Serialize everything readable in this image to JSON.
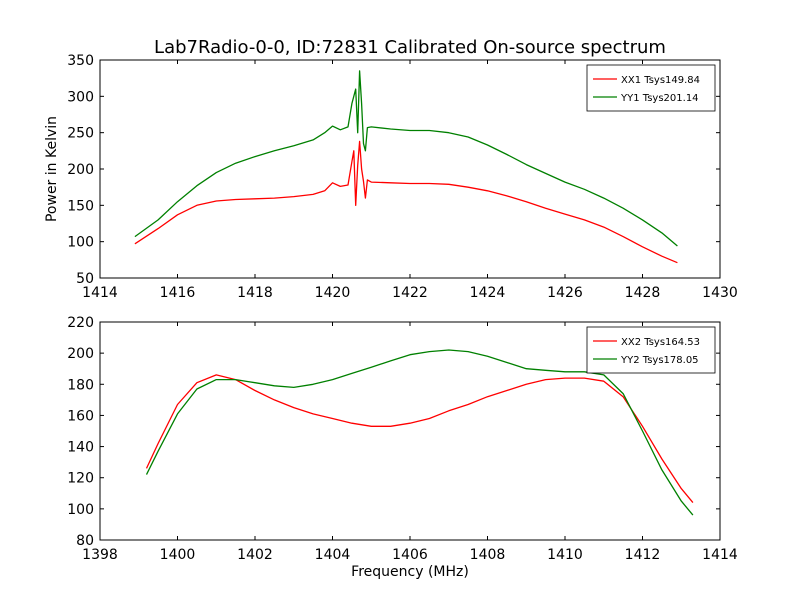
{
  "figure": {
    "title": "Lab7Radio-0-0, ID:72831 Calibrated On-source spectrum"
  },
  "chart_data": [
    {
      "type": "line",
      "title": "Lab7Radio-0-0, ID:72831 Calibrated On-source spectrum",
      "xlabel": "",
      "ylabel": "Power in Kelvin",
      "xlim": [
        1414,
        1430
      ],
      "ylim": [
        50,
        350
      ],
      "xticks": [
        1414,
        1416,
        1418,
        1420,
        1422,
        1424,
        1426,
        1428,
        1430
      ],
      "yticks": [
        50,
        100,
        150,
        200,
        250,
        300,
        350
      ],
      "legend": "top-right",
      "grid": false,
      "series": [
        {
          "name": "XX1 Tsys149.84",
          "color": "#ff0000",
          "x": [
            1414.9,
            1415.5,
            1416.0,
            1416.5,
            1417.0,
            1417.5,
            1418.0,
            1418.5,
            1419.0,
            1419.5,
            1419.8,
            1420.0,
            1420.2,
            1420.4,
            1420.5,
            1420.55,
            1420.6,
            1420.65,
            1420.7,
            1420.75,
            1420.8,
            1420.85,
            1420.9,
            1421.0,
            1421.5,
            1422.0,
            1422.5,
            1423.0,
            1423.5,
            1424.0,
            1424.5,
            1425.0,
            1425.5,
            1426.0,
            1426.5,
            1427.0,
            1427.5,
            1428.0,
            1428.5,
            1428.9
          ],
          "y": [
            97,
            118,
            137,
            150,
            156,
            158,
            159,
            160,
            162,
            165,
            170,
            181,
            176,
            178,
            210,
            225,
            150,
            205,
            238,
            200,
            183,
            160,
            185,
            182,
            181,
            180,
            180,
            179,
            175,
            170,
            163,
            155,
            146,
            138,
            130,
            120,
            107,
            93,
            80,
            71
          ]
        },
        {
          "name": "YY1 Tsys201.14",
          "color": "#008000",
          "x": [
            1414.9,
            1415.5,
            1416.0,
            1416.5,
            1417.0,
            1417.5,
            1418.0,
            1418.5,
            1419.0,
            1419.5,
            1419.8,
            1420.0,
            1420.2,
            1420.4,
            1420.5,
            1420.6,
            1420.65,
            1420.7,
            1420.75,
            1420.8,
            1420.85,
            1420.9,
            1421.0,
            1421.5,
            1422.0,
            1422.5,
            1423.0,
            1423.5,
            1424.0,
            1424.5,
            1425.0,
            1425.5,
            1426.0,
            1426.5,
            1427.0,
            1427.5,
            1428.0,
            1428.5,
            1428.9
          ],
          "y": [
            107,
            130,
            155,
            177,
            195,
            208,
            217,
            225,
            232,
            240,
            250,
            259,
            254,
            258,
            290,
            310,
            250,
            335,
            290,
            235,
            225,
            257,
            258,
            255,
            253,
            253,
            250,
            244,
            233,
            220,
            206,
            194,
            182,
            172,
            160,
            146,
            130,
            112,
            94
          ]
        }
      ]
    },
    {
      "type": "line",
      "title": "",
      "xlabel": "Frequency (MHz)",
      "ylabel": "",
      "xlim": [
        1398,
        1414
      ],
      "ylim": [
        80,
        220
      ],
      "xticks": [
        1398,
        1400,
        1402,
        1404,
        1406,
        1408,
        1410,
        1412,
        1414
      ],
      "yticks": [
        80,
        100,
        120,
        140,
        160,
        180,
        200,
        220
      ],
      "legend": "top-right",
      "grid": false,
      "series": [
        {
          "name": "XX2 Tsys164.53",
          "color": "#ff0000",
          "x": [
            1399.2,
            1399.5,
            1400.0,
            1400.5,
            1401.0,
            1401.5,
            1402.0,
            1402.5,
            1403.0,
            1403.5,
            1404.0,
            1404.5,
            1405.0,
            1405.5,
            1406.0,
            1406.5,
            1407.0,
            1407.5,
            1408.0,
            1408.5,
            1409.0,
            1409.5,
            1410.0,
            1410.5,
            1411.0,
            1411.5,
            1412.0,
            1412.5,
            1413.0,
            1413.3
          ],
          "y": [
            126,
            142,
            167,
            181,
            186,
            183,
            176,
            170,
            165,
            161,
            158,
            155,
            153,
            153,
            155,
            158,
            163,
            167,
            172,
            176,
            180,
            183,
            184,
            184,
            182,
            172,
            153,
            132,
            113,
            104
          ]
        },
        {
          "name": "YY2 Tsys178.05",
          "color": "#008000",
          "x": [
            1399.2,
            1399.5,
            1400.0,
            1400.5,
            1401.0,
            1401.5,
            1402.0,
            1402.5,
            1403.0,
            1403.5,
            1404.0,
            1404.5,
            1405.0,
            1405.5,
            1406.0,
            1406.5,
            1407.0,
            1407.5,
            1408.0,
            1408.5,
            1409.0,
            1409.5,
            1410.0,
            1410.5,
            1411.0,
            1411.5,
            1412.0,
            1412.5,
            1413.0,
            1413.3
          ],
          "y": [
            122,
            137,
            161,
            177,
            183,
            183,
            181,
            179,
            178,
            180,
            183,
            187,
            191,
            195,
            199,
            201,
            202,
            201,
            198,
            194,
            190,
            189,
            188,
            188,
            186,
            174,
            150,
            125,
            105,
            96
          ]
        }
      ]
    }
  ]
}
